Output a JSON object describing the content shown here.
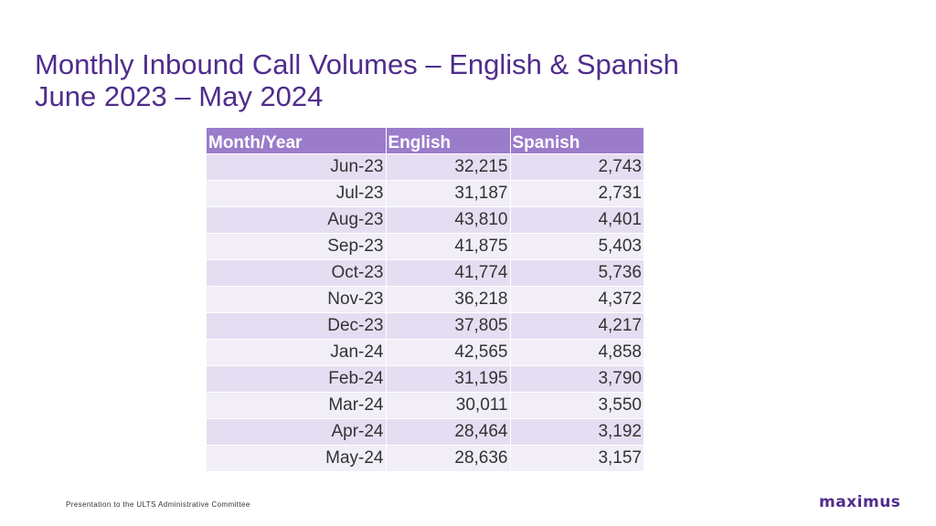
{
  "slide": {
    "title_line1": "Monthly Inbound Call Volumes – English & Spanish",
    "title_line2": "June 2023 – May 2024",
    "footer": "Presentation to the ULTS Administrative Committee",
    "logo": "maximus"
  },
  "table": {
    "headers": [
      "Month/Year",
      "English",
      "Spanish"
    ],
    "rows": [
      [
        "Jun-23",
        "32,215",
        "2,743"
      ],
      [
        "Jul-23",
        "31,187",
        "2,731"
      ],
      [
        "Aug-23",
        "43,810",
        "4,401"
      ],
      [
        "Sep-23",
        "41,875",
        "5,403"
      ],
      [
        "Oct-23",
        "41,774",
        "5,736"
      ],
      [
        "Nov-23",
        "36,218",
        "4,372"
      ],
      [
        "Dec-23",
        "37,805",
        "4,217"
      ],
      [
        "Jan-24",
        "42,565",
        "4,858"
      ],
      [
        "Feb-24",
        "31,195",
        "3,790"
      ],
      [
        "Mar-24",
        "30,011",
        "3,550"
      ],
      [
        "Apr-24",
        "28,464",
        "3,192"
      ],
      [
        "May-24",
        "28,636",
        "3,157"
      ]
    ]
  },
  "colors": {
    "title": "#4f2d8c",
    "header_bg": "#9b7ccb",
    "row_dark": "#e5ddf1",
    "row_light": "#f2eef8"
  }
}
